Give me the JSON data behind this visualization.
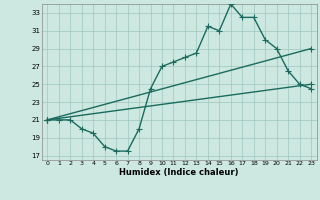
{
  "title": "",
  "xlabel": "Humidex (Indice chaleur)",
  "xlim": [
    -0.5,
    23.5
  ],
  "ylim": [
    16.5,
    34.0
  ],
  "xticks": [
    0,
    1,
    2,
    3,
    4,
    5,
    6,
    7,
    8,
    9,
    10,
    11,
    12,
    13,
    14,
    15,
    16,
    17,
    18,
    19,
    20,
    21,
    22,
    23
  ],
  "yticks": [
    17,
    19,
    21,
    23,
    25,
    27,
    29,
    31,
    33
  ],
  "bg_color": "#cce8e0",
  "grid_color": "#a0c8c0",
  "line_color": "#1a6b5e",
  "line1_x": [
    0,
    1,
    2,
    3,
    4,
    5,
    6,
    7,
    8,
    9,
    10,
    11,
    12,
    13,
    14,
    15,
    16,
    17,
    18,
    19,
    20,
    21,
    22,
    23
  ],
  "line1_y": [
    21,
    21,
    21,
    20,
    19.5,
    18,
    17.5,
    17.5,
    20,
    24.5,
    27,
    27.5,
    28,
    28.5,
    31.5,
    31,
    34,
    32.5,
    32.5,
    30,
    29,
    26.5,
    25,
    24.5
  ],
  "line2_x": [
    0,
    23
  ],
  "line2_y": [
    21,
    25
  ],
  "line3_x": [
    0,
    23
  ],
  "line3_y": [
    21,
    29
  ],
  "markersize": 2.5,
  "linewidth": 1.0
}
